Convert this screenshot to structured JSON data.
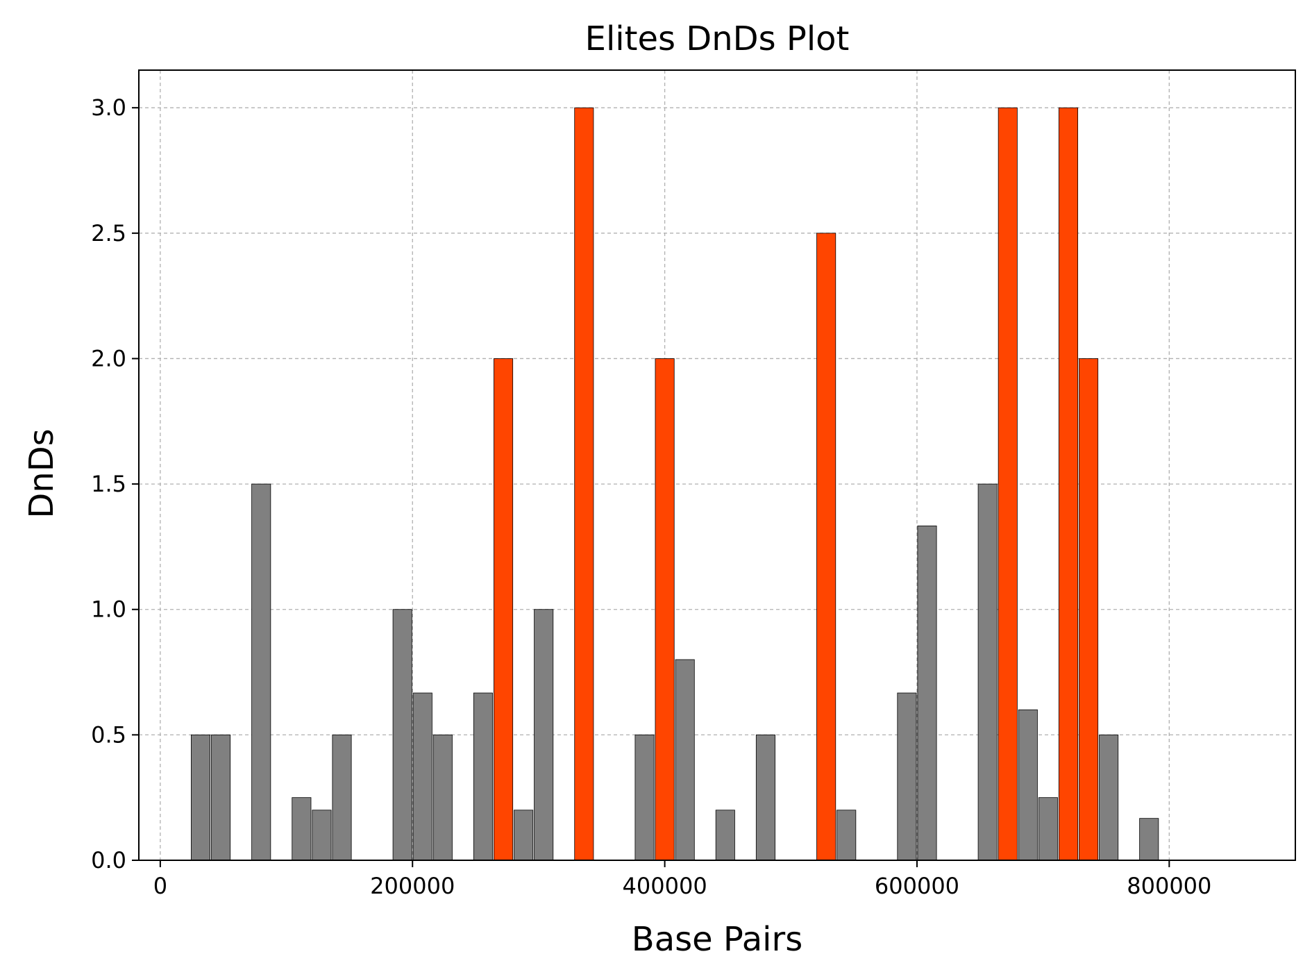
{
  "chart_data": {
    "type": "bar",
    "title": "Elites DnDs Plot",
    "xlabel": "Base Pairs",
    "ylabel": "DnDs",
    "xlim": [
      -17000,
      900000
    ],
    "ylim": [
      0,
      3.15
    ],
    "x_ticks": [
      0,
      200000,
      400000,
      600000,
      800000
    ],
    "x_tick_labels": [
      "0",
      "200000",
      "400000",
      "600000",
      "800000"
    ],
    "y_ticks": [
      0,
      0.5,
      1.0,
      1.5,
      2.0,
      2.5,
      3.0
    ],
    "y_tick_labels": [
      "0.0",
      "0.5",
      "1.0",
      "1.5",
      "2.0",
      "2.5",
      "3.0"
    ],
    "grid": true,
    "bar_width": 15000,
    "colors": {
      "normal": "#808080",
      "highlight": "#ff4500"
    },
    "bars": [
      {
        "x": 32000,
        "value": 0.5,
        "highlight": false
      },
      {
        "x": 48000,
        "value": 0.5,
        "highlight": false
      },
      {
        "x": 80000,
        "value": 1.5,
        "highlight": false
      },
      {
        "x": 112000,
        "value": 0.25,
        "highlight": false
      },
      {
        "x": 128000,
        "value": 0.2,
        "highlight": false
      },
      {
        "x": 144000,
        "value": 0.5,
        "highlight": false
      },
      {
        "x": 192000,
        "value": 1.0,
        "highlight": false
      },
      {
        "x": 208000,
        "value": 0.667,
        "highlight": false
      },
      {
        "x": 224000,
        "value": 0.5,
        "highlight": false
      },
      {
        "x": 256000,
        "value": 0.667,
        "highlight": false
      },
      {
        "x": 272000,
        "value": 2.0,
        "highlight": true
      },
      {
        "x": 288000,
        "value": 0.2,
        "highlight": false
      },
      {
        "x": 304000,
        "value": 1.0,
        "highlight": false
      },
      {
        "x": 336000,
        "value": 3.0,
        "highlight": true
      },
      {
        "x": 384000,
        "value": 0.5,
        "highlight": false
      },
      {
        "x": 400000,
        "value": 2.0,
        "highlight": true
      },
      {
        "x": 416000,
        "value": 0.8,
        "highlight": false
      },
      {
        "x": 448000,
        "value": 0.2,
        "highlight": false
      },
      {
        "x": 480000,
        "value": 0.5,
        "highlight": false
      },
      {
        "x": 528000,
        "value": 2.5,
        "highlight": true
      },
      {
        "x": 544000,
        "value": 0.2,
        "highlight": false
      },
      {
        "x": 592000,
        "value": 0.667,
        "highlight": false
      },
      {
        "x": 608000,
        "value": 1.333,
        "highlight": false
      },
      {
        "x": 656000,
        "value": 1.5,
        "highlight": false
      },
      {
        "x": 672000,
        "value": 3.0,
        "highlight": true
      },
      {
        "x": 688000,
        "value": 0.6,
        "highlight": false
      },
      {
        "x": 704000,
        "value": 0.25,
        "highlight": false
      },
      {
        "x": 720000,
        "value": 3.0,
        "highlight": true
      },
      {
        "x": 736000,
        "value": 2.0,
        "highlight": true
      },
      {
        "x": 752000,
        "value": 0.5,
        "highlight": false
      },
      {
        "x": 784000,
        "value": 0.167,
        "highlight": false
      }
    ]
  }
}
